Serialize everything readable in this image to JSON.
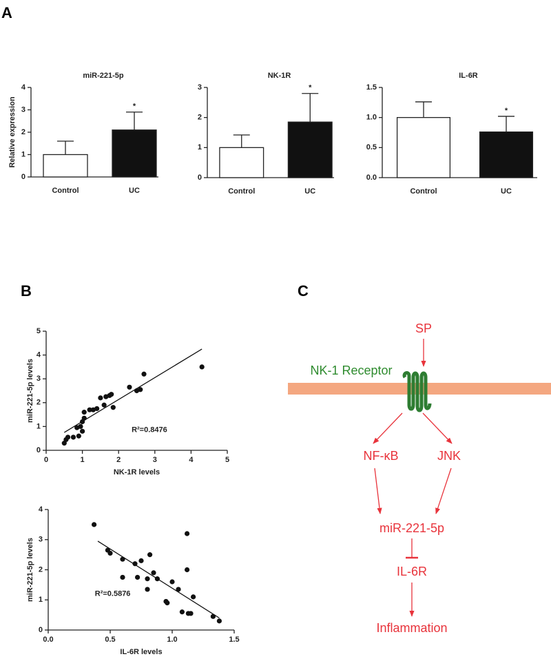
{
  "panel_labels": [
    "A",
    "B",
    "C"
  ],
  "chart_data": [
    {
      "type": "bar",
      "title": "miR-221-5p",
      "y_label": "Relative expression",
      "categories": [
        "Control",
        "UC"
      ],
      "values": [
        1.0,
        2.1
      ],
      "errors": [
        0.6,
        0.8
      ],
      "colors": [
        "#ffffff",
        "#111111"
      ],
      "significance": [
        null,
        "*"
      ],
      "ylim": [
        0,
        4
      ],
      "yticks": [
        0,
        1,
        2,
        3,
        4
      ]
    },
    {
      "type": "bar",
      "title": "NK-1R",
      "categories": [
        "Control",
        "UC"
      ],
      "values": [
        1.0,
        1.85
      ],
      "errors": [
        0.42,
        0.95
      ],
      "colors": [
        "#ffffff",
        "#111111"
      ],
      "significance": [
        null,
        "*"
      ],
      "ylim": [
        0,
        3
      ],
      "yticks": [
        0,
        1,
        2,
        3
      ]
    },
    {
      "type": "bar",
      "title": "IL-6R",
      "categories": [
        "Control",
        "UC"
      ],
      "values": [
        1.0,
        0.76
      ],
      "errors": [
        0.26,
        0.26
      ],
      "colors": [
        "#ffffff",
        "#111111"
      ],
      "significance": [
        null,
        "*"
      ],
      "ylim": [
        0,
        1.5
      ],
      "yticks": [
        {
          "value": 0,
          "label": "0.0"
        },
        0.5,
        {
          "value": 1,
          "label": "1.0"
        },
        1.5
      ]
    },
    {
      "type": "scatter",
      "x_label": "NK-1R levels",
      "y_label": "miR-221-5p levels",
      "annotation": "R²=0.8476",
      "x": [
        0.5,
        0.55,
        0.6,
        0.75,
        0.85,
        0.9,
        0.95,
        1.0,
        1.0,
        1.05,
        1.05,
        1.2,
        1.3,
        1.4,
        1.5,
        1.6,
        1.65,
        1.75,
        1.8,
        1.85,
        2.3,
        2.5,
        2.6,
        2.7,
        4.3
      ],
      "y": [
        0.3,
        0.45,
        0.55,
        0.55,
        0.95,
        0.6,
        1.0,
        0.8,
        1.2,
        1.35,
        1.6,
        1.7,
        1.7,
        1.75,
        2.2,
        1.9,
        2.25,
        2.3,
        2.35,
        1.8,
        2.65,
        2.5,
        2.55,
        3.2,
        3.5
      ],
      "trendline": {
        "x": [
          0.5,
          4.3
        ],
        "y": [
          0.75,
          4.25
        ]
      },
      "color": "#111111",
      "xlim": [
        0,
        5
      ],
      "xticks": [
        0,
        1,
        2,
        3,
        4,
        5
      ],
      "ylim": [
        0,
        5
      ],
      "yticks": [
        0,
        1,
        2,
        3,
        4,
        5
      ]
    },
    {
      "type": "scatter",
      "x_label": "IL-6R levels",
      "y_label": "miR-221-5p levels",
      "annotation": "R²=0.5876",
      "x": [
        0.37,
        0.48,
        0.5,
        0.6,
        0.6,
        0.7,
        0.72,
        0.75,
        0.8,
        0.8,
        0.82,
        0.85,
        0.88,
        0.95,
        0.96,
        1.0,
        1.05,
        1.08,
        1.12,
        1.12,
        1.13,
        1.15,
        1.17,
        1.33,
        1.38
      ],
      "y": [
        3.5,
        2.65,
        2.55,
        2.35,
        1.75,
        2.2,
        1.75,
        2.3,
        1.35,
        1.7,
        2.5,
        1.9,
        1.7,
        0.95,
        0.9,
        1.6,
        1.35,
        0.6,
        3.2,
        2.0,
        0.55,
        0.55,
        1.1,
        0.45,
        0.3
      ],
      "trendline": {
        "x": [
          0.4,
          1.38
        ],
        "y": [
          2.95,
          0.4
        ]
      },
      "color": "#111111",
      "xlim": [
        0,
        1.5
      ],
      "xticks": [
        {
          "value": 0,
          "label": "0.0"
        },
        0.5,
        {
          "value": 1,
          "label": "1.0"
        },
        1.5
      ],
      "ylim": [
        0,
        4
      ],
      "yticks": [
        0,
        1,
        2,
        3,
        4
      ]
    }
  ],
  "diagram": {
    "ligand": "SP",
    "receptor": "NK-1 Receptor",
    "nodes": [
      "NF-κB",
      "JNK",
      "miR-221-5p",
      "IL-6R",
      "Inflammation"
    ]
  }
}
